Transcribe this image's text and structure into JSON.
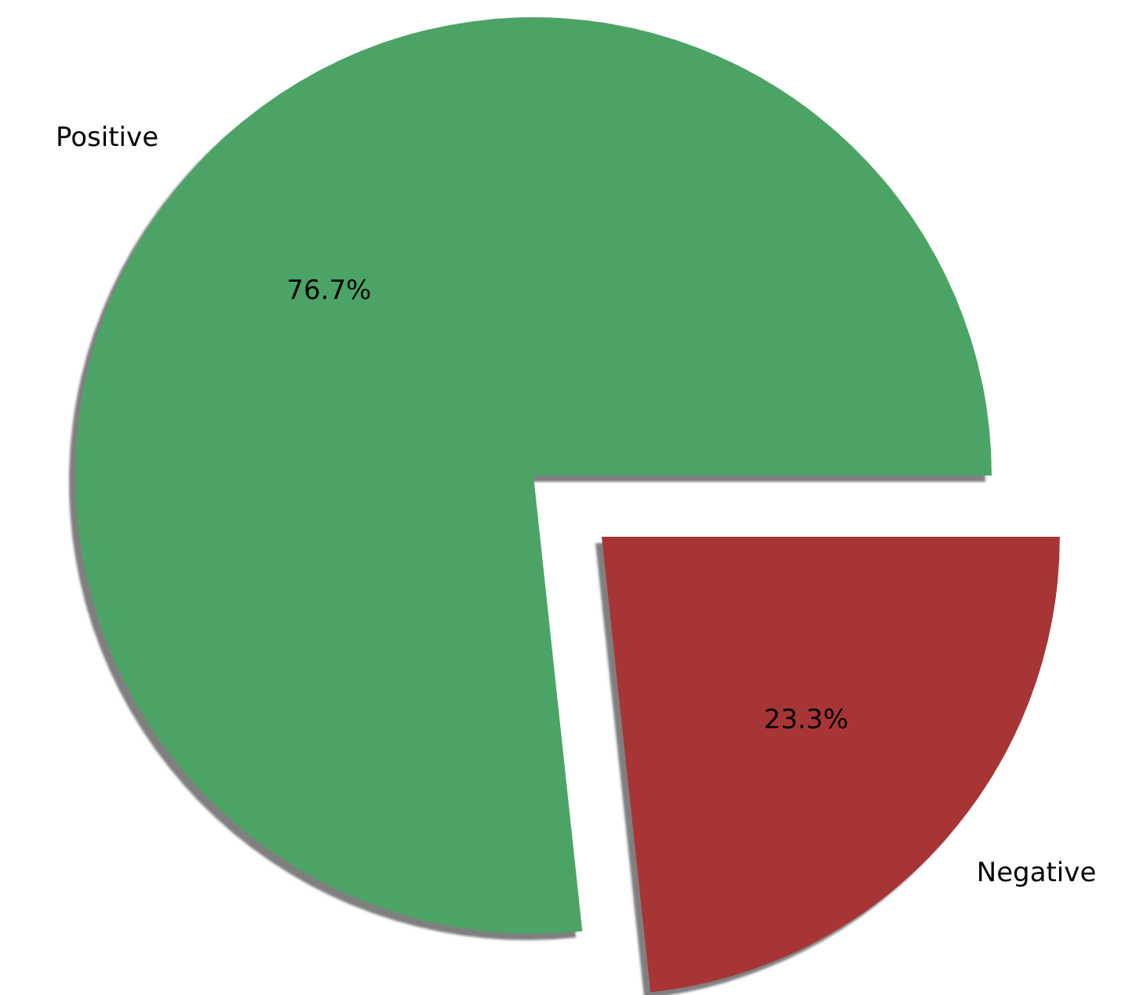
{
  "chart_data": {
    "type": "pie",
    "categories": [
      "Positive",
      "Negative"
    ],
    "values": [
      76.7,
      23.3
    ],
    "colors": [
      "#4ca466",
      "#a83434"
    ],
    "value_labels": [
      "76.7%",
      "23.3%"
    ]
  }
}
